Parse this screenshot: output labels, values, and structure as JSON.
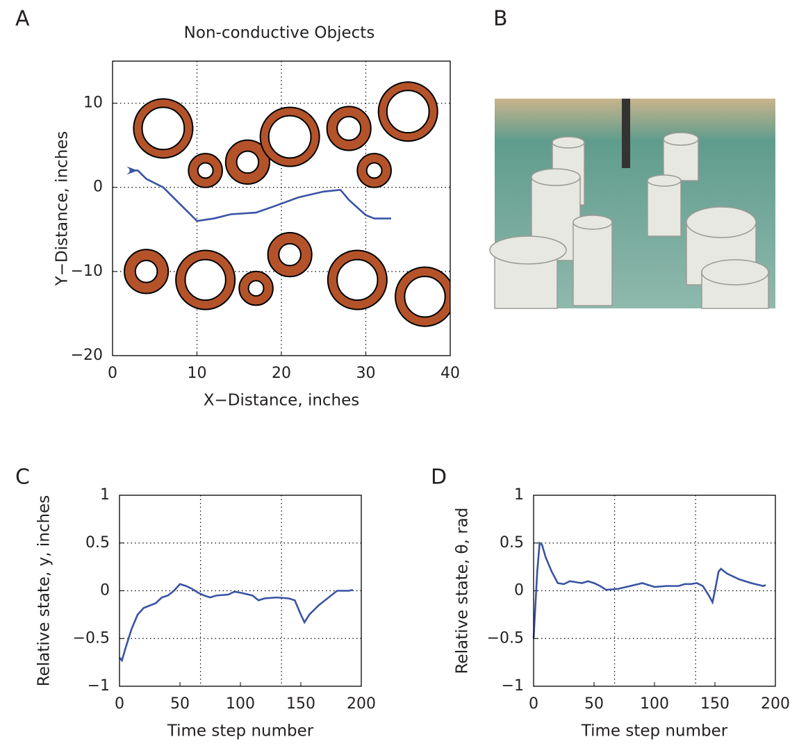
{
  "chart_data": [
    {
      "type": "line",
      "label": "A",
      "title": "Non-conductive Objects",
      "xlabel": "X−Distance, inches",
      "ylabel": "Y−Distance, inches",
      "xlim": [
        0,
        40
      ],
      "ylim": [
        -20,
        15
      ],
      "xticks": [
        0,
        10,
        20,
        30,
        40
      ],
      "yticks": [
        {
          "value": -20,
          "label": "−20"
        },
        {
          "value": -10,
          "label": "−10"
        },
        0,
        10
      ],
      "xgrid": [
        10,
        20,
        30
      ],
      "ygrid": [
        -10,
        0,
        10
      ],
      "series": [
        {
          "color": "#3953a4",
          "x": [
            2,
            3,
            4,
            6,
            8,
            10,
            12,
            14,
            17,
            19,
            22,
            25,
            27,
            28,
            30,
            31,
            33
          ],
          "values": [
            2,
            2,
            1,
            0,
            -2,
            -4,
            -3.7,
            -3.2,
            -3,
            -2.3,
            -1.2,
            -0.5,
            -0.3,
            -1.5,
            -3.3,
            -3.7,
            -3.7
          ]
        }
      ],
      "object_color": "#b4532a",
      "objects": [
        {
          "x": 6,
          "y": 7,
          "r_outer": 3.5,
          "r_inner": 2.5
        },
        {
          "x": 11,
          "y": 2,
          "r_outer": 2,
          "r_inner": 0.9
        },
        {
          "x": 16,
          "y": 3,
          "r_outer": 2.6,
          "r_inner": 1.3
        },
        {
          "x": 21,
          "y": 6,
          "r_outer": 3.5,
          "r_inner": 2.5
        },
        {
          "x": 28,
          "y": 7,
          "r_outer": 2.6,
          "r_inner": 1.4
        },
        {
          "x": 31,
          "y": 2,
          "r_outer": 2,
          "r_inner": 0.9
        },
        {
          "x": 35,
          "y": 9,
          "r_outer": 3.5,
          "r_inner": 2.5
        },
        {
          "x": 4,
          "y": -10,
          "r_outer": 2.6,
          "r_inner": 1.3
        },
        {
          "x": 11,
          "y": -11,
          "r_outer": 3.5,
          "r_inner": 2.4
        },
        {
          "x": 17,
          "y": -12,
          "r_outer": 2,
          "r_inner": 0.9
        },
        {
          "x": 21,
          "y": -8,
          "r_outer": 2.6,
          "r_inner": 1.3
        },
        {
          "x": 29,
          "y": -11,
          "r_outer": 3.5,
          "r_inner": 2.4
        },
        {
          "x": 37,
          "y": -13,
          "r_outer": 3.5,
          "r_inner": 2.4
        }
      ]
    },
    {
      "type": "image",
      "label": "B"
    },
    {
      "type": "line",
      "label": "C",
      "xlabel": "Time step number",
      "ylabel": "Relative state, y, inches",
      "xlim": [
        0,
        200
      ],
      "ylim": [
        -1,
        1
      ],
      "xticks": [
        0,
        50,
        100,
        150,
        200
      ],
      "yticks": [
        {
          "value": -1,
          "label": "−1"
        },
        {
          "value": -0.5,
          "label": "−0.5"
        },
        0,
        0.5,
        1
      ],
      "xgrid": [
        67,
        134
      ],
      "ygrid": [
        -0.5,
        0,
        0.5
      ],
      "series": [
        {
          "color": "#3953a4",
          "x": [
            0,
            2,
            5,
            10,
            15,
            20,
            30,
            35,
            40,
            45,
            50,
            55,
            60,
            65,
            70,
            75,
            80,
            90,
            95,
            100,
            110,
            115,
            120,
            130,
            140,
            145,
            150,
            153,
            157,
            165,
            175,
            180,
            190,
            193
          ],
          "values": [
            -0.7,
            -0.73,
            -0.6,
            -0.4,
            -0.25,
            -0.18,
            -0.13,
            -0.07,
            -0.05,
            0,
            0.07,
            0.05,
            0.02,
            -0.02,
            -0.05,
            -0.07,
            -0.05,
            -0.04,
            -0.01,
            -0.02,
            -0.05,
            -0.1,
            -0.08,
            -0.07,
            -0.08,
            -0.1,
            -0.25,
            -0.33,
            -0.25,
            -0.15,
            -0.05,
            0,
            0,
            0.01
          ]
        }
      ]
    },
    {
      "type": "line",
      "label": "D",
      "xlabel": "Time step number",
      "ylabel": "Relative state, θ, rad",
      "xlim": [
        0,
        200
      ],
      "ylim": [
        -1,
        1
      ],
      "xticks": [
        0,
        50,
        100,
        150,
        200
      ],
      "yticks": [
        {
          "value": -1,
          "label": "−1"
        },
        {
          "value": -0.5,
          "label": "−0.5"
        },
        0,
        0.5,
        1
      ],
      "xgrid": [
        67,
        134
      ],
      "ygrid": [
        -0.5,
        0,
        0.5
      ],
      "series": [
        {
          "color": "#3953a4",
          "x": [
            0,
            3,
            5,
            7,
            10,
            15,
            20,
            25,
            30,
            35,
            40,
            45,
            50,
            55,
            60,
            70,
            80,
            90,
            95,
            100,
            110,
            120,
            125,
            130,
            135,
            140,
            145,
            148,
            150,
            153,
            155,
            160,
            170,
            180,
            190,
            192
          ],
          "values": [
            -0.5,
            0.2,
            0.5,
            0.48,
            0.35,
            0.2,
            0.08,
            0.07,
            0.1,
            0.09,
            0.08,
            0.1,
            0.08,
            0.05,
            0.01,
            0.02,
            0.05,
            0.08,
            0.06,
            0.04,
            0.05,
            0.05,
            0.07,
            0.07,
            0.08,
            0.05,
            -0.05,
            -0.12,
            0,
            0.2,
            0.23,
            0.18,
            0.12,
            0.08,
            0.05,
            0.06
          ]
        }
      ]
    }
  ]
}
